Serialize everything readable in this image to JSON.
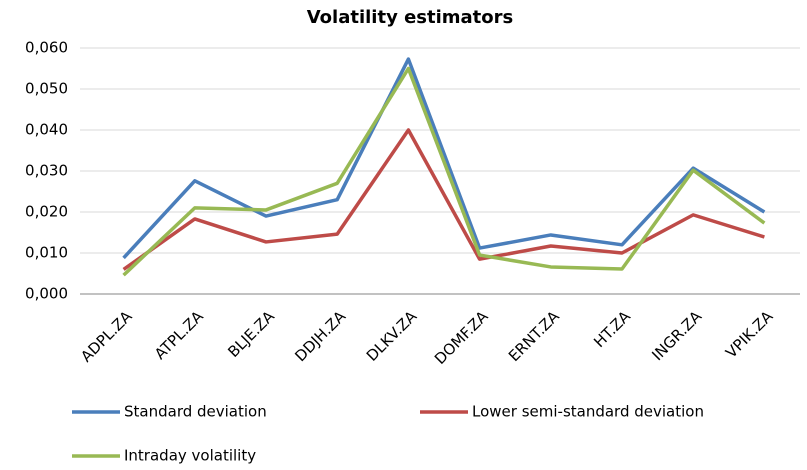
{
  "chart_data": {
    "type": "line",
    "title": "Volatility estimators",
    "categories": [
      "ADPL.ZA",
      "ATPL.ZA",
      "BLJE.ZA",
      "DDJH.ZA",
      "DLKV.ZA",
      "DOMF.ZA",
      "ERNT.ZA",
      "HT.ZA",
      "INGR.ZA",
      "VPIK.ZA"
    ],
    "series": [
      {
        "name": "Standard deviation",
        "color": "#4a7ebb",
        "values": [
          0.0088,
          0.0276,
          0.019,
          0.023,
          0.0573,
          0.0112,
          0.0144,
          0.012,
          0.0307,
          0.02
        ]
      },
      {
        "name": "Lower semi-standard deviation",
        "color": "#be4b48",
        "values": [
          0.006,
          0.0183,
          0.0127,
          0.0146,
          0.04,
          0.0085,
          0.0117,
          0.01,
          0.0193,
          0.0139
        ]
      },
      {
        "name": "Intraday volatility",
        "color": "#98b954",
        "values": [
          0.0046,
          0.021,
          0.0205,
          0.027,
          0.055,
          0.0095,
          0.0066,
          0.0061,
          0.0302,
          0.0173
        ]
      }
    ],
    "ylim": [
      0,
      0.06
    ],
    "yticks": [
      {
        "value": 0,
        "label": "0,000"
      },
      {
        "value": 0.01,
        "label": "0,010"
      },
      {
        "value": 0.02,
        "label": "0,020"
      },
      {
        "value": 0.03,
        "label": "0,030"
      },
      {
        "value": 0.04,
        "label": "0,040"
      },
      {
        "value": 0.05,
        "label": "0,050"
      },
      {
        "value": 0.06,
        "label": "0,060"
      }
    ],
    "grid": true,
    "legend": "bottom"
  }
}
